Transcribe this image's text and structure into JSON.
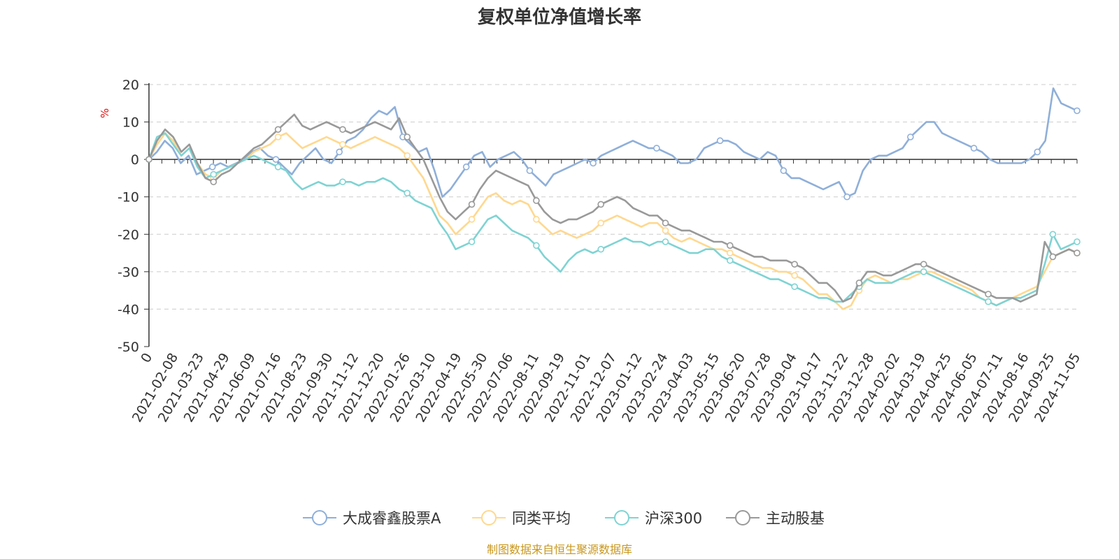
{
  "chart_data": {
    "type": "line",
    "title": "复权单位净值增长率",
    "ylabel": "%",
    "ylim": [
      -50,
      20
    ],
    "yticks": [
      20,
      10,
      0,
      -10,
      -20,
      -30,
      -40,
      -50
    ],
    "x_start_label": "0",
    "x_labels": [
      "2021-02-08",
      "2021-03-23",
      "2021-04-29",
      "2021-06-09",
      "2021-07-16",
      "2021-08-23",
      "2021-09-30",
      "2021-11-12",
      "2021-12-20",
      "2022-01-26",
      "2022-03-10",
      "2022-04-19",
      "2022-05-30",
      "2022-07-06",
      "2022-08-11",
      "2022-09-19",
      "2022-11-01",
      "2022-12-07",
      "2023-01-12",
      "2023-02-24",
      "2023-04-03",
      "2023-05-15",
      "2023-06-20",
      "2023-07-28",
      "2023-09-04",
      "2023-10-17",
      "2023-11-22",
      "2023-12-28",
      "2024-02-02",
      "2024-03-19",
      "2024-04-25",
      "2024-06-05",
      "2024-07-11",
      "2024-08-16",
      "2024-09-25",
      "2024-11-05"
    ],
    "grid": true,
    "legend_position": "bottom",
    "series": [
      {
        "name": "大成睿鑫股票A",
        "color": "#8fafd9",
        "values": [
          0,
          2,
          5,
          3,
          -1,
          1,
          -4,
          -3,
          -2,
          -1,
          -2,
          -1,
          0,
          2,
          3,
          1,
          0,
          -2,
          -4,
          -1,
          1,
          3,
          0,
          -1,
          2,
          5,
          6,
          8,
          11,
          13,
          12,
          14,
          6,
          4,
          2,
          3,
          -3,
          -10,
          -8,
          -5,
          -2,
          1,
          2,
          -2,
          0,
          1,
          2,
          0,
          -3,
          -5,
          -7,
          -4,
          -3,
          -2,
          -1,
          0,
          -1,
          1,
          2,
          3,
          4,
          5,
          4,
          3,
          3,
          2,
          1,
          -1,
          -1,
          0,
          3,
          4,
          5,
          5,
          4,
          2,
          1,
          0,
          2,
          1,
          -3,
          -5,
          -5,
          -6,
          -7,
          -8,
          -7,
          -6,
          -10,
          -9,
          -3,
          0,
          1,
          1,
          2,
          3,
          6,
          8,
          10,
          10,
          7,
          6,
          5,
          4,
          3,
          2,
          0,
          -1,
          -1,
          -1,
          -1,
          0,
          2,
          5,
          19,
          15,
          14,
          13
        ]
      },
      {
        "name": "同类平均",
        "color": "#ffd88f",
        "values": [
          0,
          4,
          7,
          5,
          1,
          3,
          -1,
          -4,
          -5,
          -3,
          -2,
          -1,
          0,
          2,
          3,
          4,
          6,
          7,
          5,
          3,
          4,
          5,
          6,
          5,
          4,
          3,
          4,
          5,
          6,
          5,
          4,
          3,
          1,
          -2,
          -5,
          -10,
          -15,
          -17,
          -20,
          -18,
          -16,
          -13,
          -10,
          -9,
          -11,
          -12,
          -11,
          -12,
          -16,
          -18,
          -20,
          -19,
          -20,
          -21,
          -20,
          -19,
          -17,
          -16,
          -15,
          -16,
          -17,
          -18,
          -17,
          -17,
          -19,
          -21,
          -22,
          -21,
          -22,
          -23,
          -24,
          -24,
          -25,
          -26,
          -27,
          -28,
          -29,
          -29,
          -30,
          -30,
          -31,
          -32,
          -34,
          -36,
          -36,
          -38,
          -40,
          -39,
          -35,
          -32,
          -31,
          -32,
          -33,
          -32,
          -32,
          -31,
          -30,
          -30,
          -31,
          -32,
          -33,
          -34,
          -35,
          -37,
          -38,
          -39,
          -38,
          -37,
          -36,
          -35,
          -34,
          -30,
          -26,
          -25,
          -24,
          -25
        ]
      },
      {
        "name": "沪深300",
        "color": "#7fd3d3",
        "values": [
          0,
          6,
          7,
          4,
          1,
          3,
          -2,
          -5,
          -4,
          -3,
          -2,
          -1,
          0,
          1,
          0,
          -1,
          -2,
          -3,
          -6,
          -8,
          -7,
          -6,
          -7,
          -7,
          -6,
          -6,
          -7,
          -6,
          -6,
          -5,
          -6,
          -8,
          -9,
          -11,
          -12,
          -13,
          -17,
          -20,
          -24,
          -23,
          -22,
          -19,
          -16,
          -15,
          -17,
          -19,
          -20,
          -21,
          -23,
          -26,
          -28,
          -30,
          -27,
          -25,
          -24,
          -25,
          -24,
          -23,
          -22,
          -21,
          -22,
          -22,
          -23,
          -22,
          -22,
          -23,
          -24,
          -25,
          -25,
          -24,
          -24,
          -26,
          -27,
          -28,
          -29,
          -30,
          -31,
          -32,
          -32,
          -33,
          -34,
          -35,
          -36,
          -37,
          -37,
          -38,
          -38,
          -36,
          -34,
          -32,
          -33,
          -33,
          -33,
          -32,
          -31,
          -30,
          -30,
          -31,
          -32,
          -33,
          -34,
          -35,
          -36,
          -37,
          -38,
          -39,
          -38,
          -37,
          -37,
          -36,
          -35,
          -28,
          -20,
          -24,
          -23,
          -22
        ]
      },
      {
        "name": "主动股基",
        "color": "#999999",
        "values": [
          0,
          5,
          8,
          6,
          2,
          4,
          -1,
          -5,
          -6,
          -4,
          -3,
          -1,
          1,
          3,
          4,
          6,
          8,
          10,
          12,
          9,
          8,
          9,
          10,
          9,
          8,
          7,
          8,
          9,
          10,
          9,
          8,
          11,
          6,
          3,
          0,
          -5,
          -10,
          -14,
          -16,
          -14,
          -12,
          -8,
          -5,
          -3,
          -4,
          -5,
          -6,
          -7,
          -11,
          -14,
          -16,
          -17,
          -16,
          -16,
          -15,
          -14,
          -12,
          -11,
          -10,
          -11,
          -13,
          -14,
          -15,
          -15,
          -17,
          -18,
          -19,
          -19,
          -20,
          -21,
          -22,
          -22,
          -23,
          -24,
          -25,
          -26,
          -26,
          -27,
          -27,
          -27,
          -28,
          -29,
          -31,
          -33,
          -33,
          -35,
          -38,
          -37,
          -33,
          -30,
          -30,
          -31,
          -31,
          -30,
          -29,
          -28,
          -28,
          -29,
          -30,
          -31,
          -32,
          -33,
          -34,
          -35,
          -36,
          -37,
          -37,
          -37,
          -38,
          -37,
          -36,
          -22,
          -26,
          -25,
          -24,
          -25
        ]
      }
    ]
  },
  "source_text": "制图数据来自恒生聚源数据库"
}
